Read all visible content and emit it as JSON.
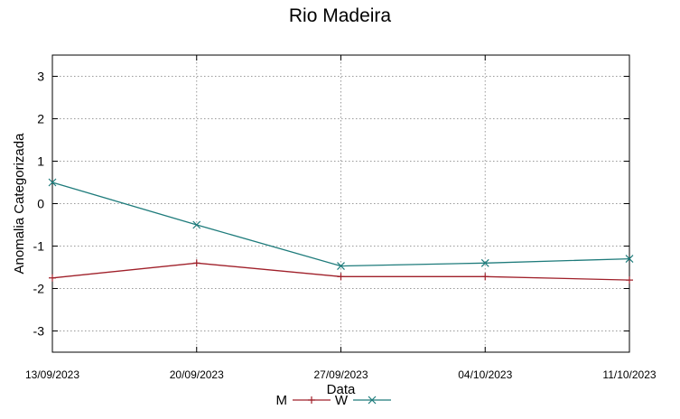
{
  "chart_data": {
    "type": "line",
    "title": "Rio Madeira",
    "xlabel": "Data",
    "ylabel": "Anomalia Categorizada",
    "categories": [
      "13/09/2023",
      "20/09/2023",
      "27/09/2023",
      "04/10/2023",
      "11/10/2023"
    ],
    "yticks": [
      "3",
      "2",
      "1",
      "0",
      "-1",
      "-2",
      "-3"
    ],
    "ylim": [
      -3.5,
      3.5
    ],
    "grid": true,
    "legend_position": "bottom-center",
    "series": [
      {
        "name": "M",
        "color": "#a0202a",
        "marker": "plus",
        "values": [
          -1.75,
          -1.4,
          -1.72,
          -1.72,
          -1.8
        ]
      },
      {
        "name": "W",
        "color": "#1e7b7b",
        "marker": "cross",
        "values": [
          0.5,
          -0.5,
          -1.47,
          -1.4,
          -1.3
        ]
      }
    ]
  }
}
